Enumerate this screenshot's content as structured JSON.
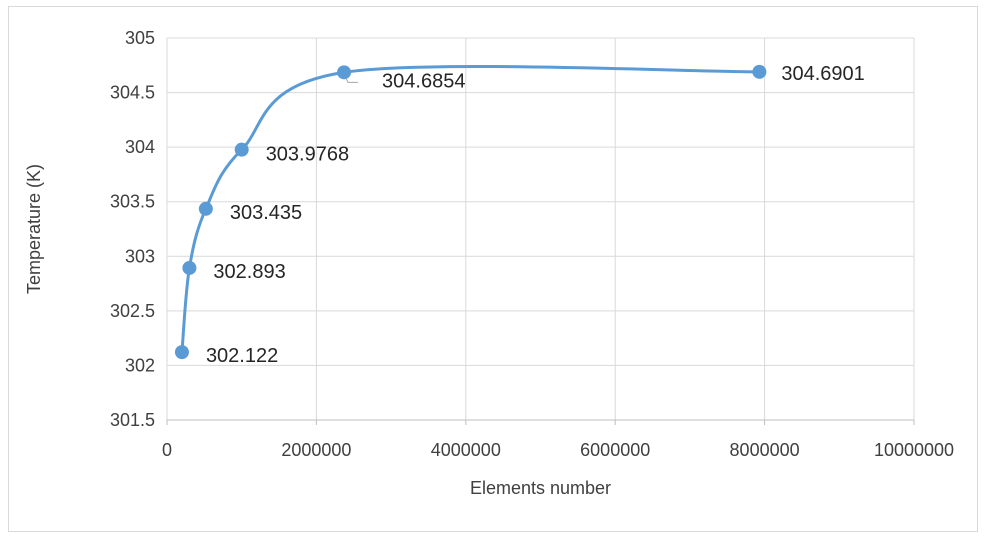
{
  "chart_data": {
    "type": "scatter",
    "title": "",
    "xlabel": "Elements number",
    "ylabel": "Temperature (K)",
    "xlim": [
      0,
      10000000
    ],
    "ylim": [
      301.5,
      305
    ],
    "x_ticks": [
      0,
      2000000,
      4000000,
      6000000,
      8000000,
      10000000
    ],
    "x_tick_labels": [
      "0",
      "2000000",
      "4000000",
      "6000000",
      "8000000",
      "10000000"
    ],
    "y_ticks": [
      301.5,
      302,
      302.5,
      303,
      303.5,
      304,
      304.5,
      305
    ],
    "y_tick_labels": [
      "301.5",
      "302",
      "302.5",
      "303",
      "303.5",
      "304",
      "304.5",
      "305"
    ],
    "grid": true,
    "smooth_line": true,
    "series": [
      {
        "color": "#5b9bd5",
        "x": [
          200000,
          300000,
          520000,
          1000000,
          2370000,
          7930000
        ],
        "y": [
          302.122,
          302.893,
          303.435,
          303.9768,
          304.6854,
          304.6901
        ],
        "labels": [
          "302.122",
          "302.893",
          "303.435",
          "303.9768",
          "304.6854",
          "304.6901"
        ]
      }
    ]
  }
}
